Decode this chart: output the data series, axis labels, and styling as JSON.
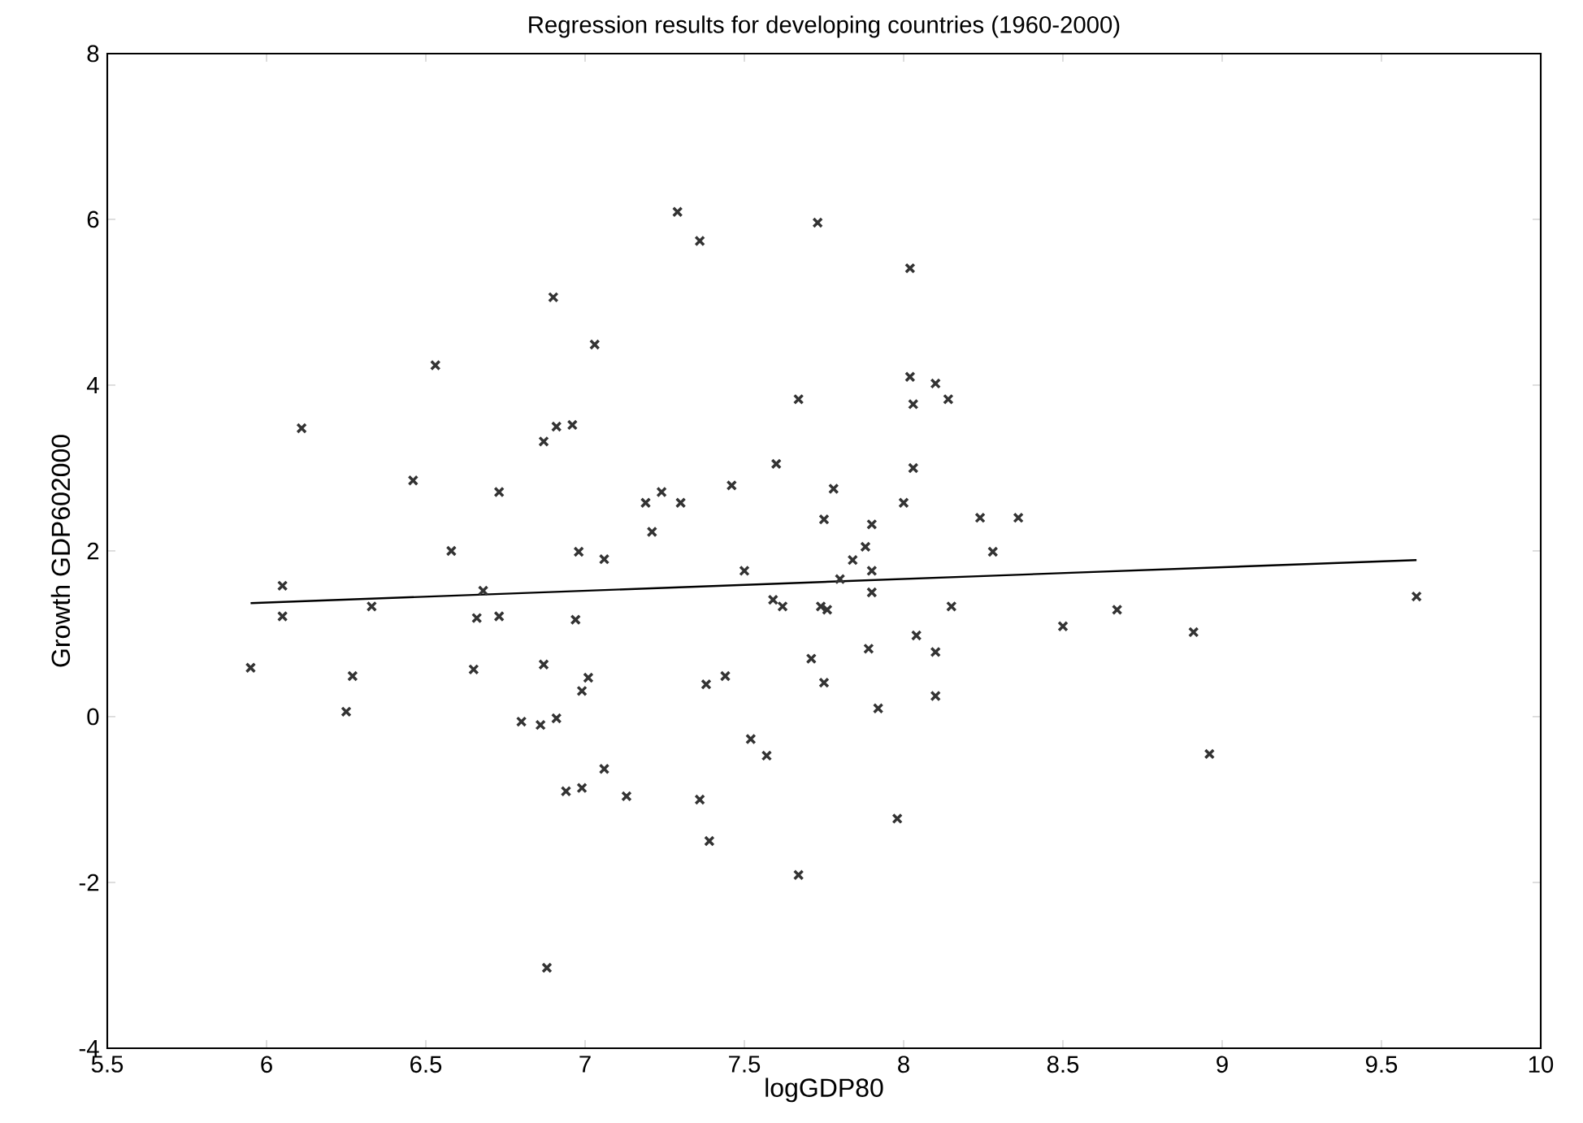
{
  "chart_data": {
    "type": "scatter",
    "title": "Regression results for developing countries (1960-2000)",
    "xlabel": "logGDP80",
    "ylabel": "Growth GDP602000",
    "xlim": [
      5.5,
      10
    ],
    "ylim": [
      -4,
      8
    ],
    "xticks": [
      5.5,
      6,
      6.5,
      7,
      7.5,
      8,
      8.5,
      9,
      9.5,
      10
    ],
    "yticks": [
      -4,
      -2,
      0,
      2,
      4,
      6,
      8
    ],
    "grid": false,
    "series": [
      {
        "marker": "cross",
        "color": "#333333",
        "x": [
          5.95,
          6.05,
          6.05,
          6.11,
          6.25,
          6.27,
          6.33,
          6.46,
          6.53,
          6.58,
          6.65,
          6.66,
          6.68,
          6.73,
          6.73,
          6.87,
          6.97,
          6.98,
          7.06,
          6.9,
          7.03,
          6.87,
          6.91,
          6.96,
          6.99,
          7.01,
          6.8,
          6.86,
          6.91,
          6.94,
          6.99,
          7.06,
          7.13,
          6.88,
          7.36,
          7.39,
          7.67,
          7.38,
          7.44,
          7.52,
          7.57,
          7.71,
          7.75,
          7.29,
          7.36,
          7.73,
          8.02,
          7.67,
          8.02,
          8.1,
          8.14,
          8.03,
          7.6,
          8.03,
          7.46,
          7.78,
          7.19,
          7.24,
          7.3,
          8.0,
          7.21,
          7.75,
          7.9,
          8.24,
          8.36,
          7.88,
          7.84,
          8.28,
          7.5,
          7.9,
          7.8,
          7.9,
          7.59,
          7.62,
          7.74,
          7.76,
          8.15,
          8.04,
          8.1,
          7.89,
          8.1,
          7.92,
          8.5,
          8.67,
          8.91,
          8.96,
          9.61,
          7.98
        ],
        "values": [
          0.59,
          1.58,
          1.21,
          3.48,
          0.06,
          0.49,
          1.33,
          2.85,
          4.24,
          2.0,
          0.57,
          1.19,
          1.52,
          1.21,
          2.71,
          0.63,
          1.17,
          1.99,
          1.9,
          5.06,
          4.49,
          3.32,
          3.5,
          3.52,
          0.31,
          0.47,
          -0.06,
          -0.1,
          -0.02,
          -0.9,
          -0.86,
          -0.63,
          -0.96,
          -3.03,
          -1.0,
          -1.5,
          -1.91,
          0.39,
          0.49,
          -0.27,
          -0.47,
          0.7,
          0.41,
          6.09,
          5.74,
          5.96,
          5.41,
          3.83,
          4.1,
          4.02,
          3.83,
          3.77,
          3.05,
          3.0,
          2.79,
          2.75,
          2.58,
          2.71,
          2.58,
          2.58,
          2.23,
          2.38,
          2.32,
          2.4,
          2.4,
          2.05,
          1.89,
          1.99,
          1.76,
          1.76,
          1.66,
          1.5,
          1.41,
          1.33,
          1.33,
          1.29,
          1.33,
          0.98,
          0.78,
          0.82,
          0.25,
          0.1,
          1.09,
          1.29,
          1.02,
          -0.45,
          1.45,
          -1.23
        ]
      },
      {
        "type": "line",
        "marker": "none",
        "line_style": "solid",
        "color": "#000000",
        "x": [
          5.95,
          9.61
        ],
        "values": [
          1.37,
          1.89
        ]
      }
    ]
  }
}
